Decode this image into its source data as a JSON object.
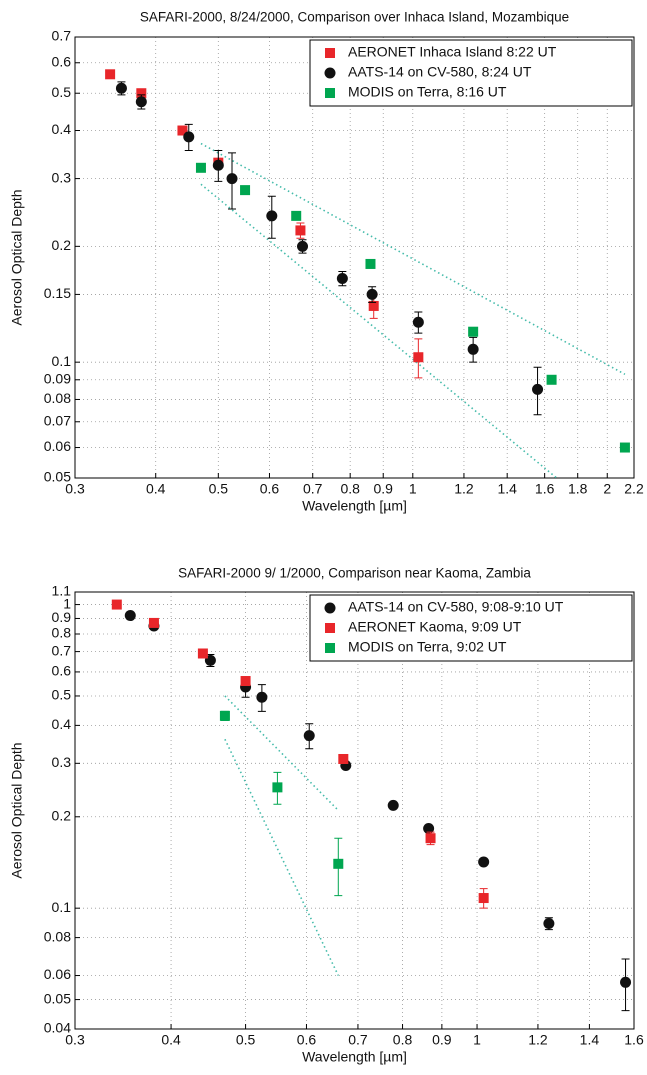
{
  "chart_data": [
    {
      "type": "scatter",
      "title": "SAFARI-2000,  8/24/2000, Comparison over Inhaca Island, Mozambique",
      "x_label": "Wavelength [µm]",
      "y_label": "Aerosol Optical Depth",
      "x_scale": "log",
      "y_scale": "log",
      "grid": true,
      "legend": "upper right",
      "xlim": [
        0.3,
        2.2
      ],
      "ylim": [
        0.05,
        0.7
      ],
      "xticks": [
        0.3,
        0.4,
        0.5,
        0.6,
        0.7,
        0.8,
        0.9,
        1,
        1.2,
        1.4,
        1.6,
        1.8,
        2,
        2.2
      ],
      "yticks": [
        0.05,
        0.06,
        0.07,
        0.08,
        0.09,
        0.1,
        0.15,
        0.2,
        0.3,
        0.4,
        0.5,
        0.6,
        0.7
      ],
      "series": [
        {
          "name": "AERONET Inhaca Island 8:22 UT",
          "color": "#e8262a",
          "marker": "square",
          "x": [
            0.34,
            0.38,
            0.44,
            0.5,
            0.67,
            0.87,
            1.02
          ],
          "values": [
            0.56,
            0.5,
            0.4,
            0.33,
            0.22,
            0.14,
            0.103
          ],
          "errors": [
            null,
            null,
            null,
            null,
            0.01,
            0.01,
            0.012
          ]
        },
        {
          "name": "AATS-14 on CV-580, 8:24 UT",
          "color": "#111111",
          "marker": "circle",
          "x": [
            0.354,
            0.38,
            0.45,
            0.5,
            0.525,
            0.605,
            0.675,
            0.778,
            0.865,
            1.02,
            1.24,
            1.56
          ],
          "values": [
            0.515,
            0.475,
            0.385,
            0.325,
            0.3,
            0.24,
            0.2,
            0.165,
            0.15,
            0.127,
            0.108,
            0.085
          ],
          "errors": [
            0.02,
            0.02,
            0.03,
            0.03,
            0.05,
            0.03,
            0.008,
            0.007,
            0.007,
            0.008,
            0.008,
            0.012
          ]
        },
        {
          "name": "MODIS on Terra, 8:16 UT",
          "color": "#00a650",
          "marker": "square",
          "x": [
            0.47,
            0.55,
            0.66,
            0.86,
            1.24,
            1.64,
            2.13
          ],
          "values": [
            0.32,
            0.28,
            0.24,
            0.18,
            0.12,
            0.09,
            0.06
          ],
          "errors": [
            null,
            null,
            null,
            null,
            null,
            null,
            null
          ]
        }
      ],
      "envelopes": [
        {
          "color": "#44bbaa",
          "x": [
            0.47,
            2.13
          ],
          "values": [
            0.37,
            0.093
          ]
        },
        {
          "color": "#44bbaa",
          "x": [
            0.47,
            1.67
          ],
          "values": [
            0.29,
            0.05
          ]
        }
      ]
    },
    {
      "type": "scatter",
      "title": "SAFARI-2000  9/ 1/2000, Comparison near Kaoma, Zambia",
      "x_label": "Wavelength [µm]",
      "y_label": "Aerosol Optical Depth",
      "x_scale": "log",
      "y_scale": "log",
      "grid": true,
      "legend": "upper right",
      "xlim": [
        0.3,
        1.6
      ],
      "ylim": [
        0.04,
        1.1
      ],
      "xticks": [
        0.3,
        0.4,
        0.5,
        0.6,
        0.7,
        0.8,
        0.9,
        1,
        1.2,
        1.4,
        1.6
      ],
      "yticks": [
        0.04,
        0.05,
        0.06,
        0.08,
        0.1,
        0.2,
        0.3,
        0.4,
        0.5,
        0.6,
        0.7,
        0.8,
        0.9,
        1,
        1.1
      ],
      "series": [
        {
          "name": "AATS-14 on CV-580, 9:08-9:10 UT",
          "color": "#111111",
          "marker": "circle",
          "x": [
            0.354,
            0.38,
            0.45,
            0.5,
            0.525,
            0.605,
            0.675,
            0.778,
            0.865,
            1.02,
            1.24,
            1.56
          ],
          "values": [
            0.92,
            0.85,
            0.655,
            0.535,
            0.495,
            0.37,
            0.295,
            0.218,
            0.183,
            0.142,
            0.089,
            0.057
          ],
          "errors": [
            null,
            null,
            0.03,
            0.04,
            0.05,
            0.035,
            null,
            null,
            null,
            null,
            0.004,
            0.011
          ]
        },
        {
          "name": "AERONET Kaoma, 9:09 UT",
          "color": "#e8262a",
          "marker": "square",
          "x": [
            0.34,
            0.38,
            0.44,
            0.5,
            0.67,
            0.87,
            1.02
          ],
          "values": [
            1.0,
            0.87,
            0.69,
            0.56,
            0.31,
            0.17,
            0.108
          ],
          "errors": [
            null,
            null,
            null,
            null,
            null,
            0.008,
            0.008
          ]
        },
        {
          "name": "MODIS on Terra, 9:02 UT",
          "color": "#00a650",
          "marker": "square",
          "x": [
            0.47,
            0.55,
            0.66
          ],
          "values": [
            0.43,
            0.25,
            0.14
          ],
          "errors": [
            0.015,
            0.03,
            0.03
          ]
        }
      ],
      "envelopes": [
        {
          "color": "#44bbaa",
          "x": [
            0.47,
            0.66
          ],
          "values": [
            0.5,
            0.21
          ]
        },
        {
          "color": "#44bbaa",
          "x": [
            0.47,
            0.66
          ],
          "values": [
            0.36,
            0.06
          ]
        }
      ]
    }
  ]
}
